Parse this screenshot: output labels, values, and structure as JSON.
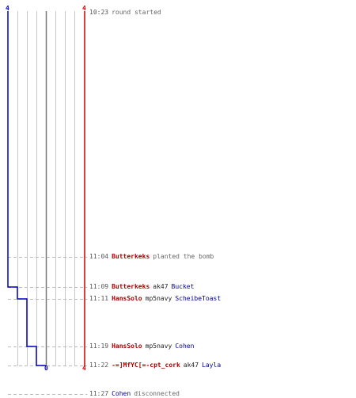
{
  "score": {
    "left_top": "4",
    "right_top": "4",
    "left_bottom": "0",
    "right_bottom": "4"
  },
  "colors": {
    "team_blue": "#0000cc",
    "team_red": "#cc0000",
    "grid": "#c8c8c8",
    "guide": "#bbbbbb"
  },
  "events": [
    {
      "time": "10:23",
      "text": "round started"
    },
    {
      "time": "11:04",
      "actor": "Butterkeks",
      "text": "planted the bomb"
    },
    {
      "time": "11:09",
      "actor": "Butterkeks",
      "weapon": "ak47",
      "victim": "Bucket"
    },
    {
      "time": "11:11",
      "actor": "HansSolo",
      "weapon": "mp5navy",
      "victim": "ScheibeToast"
    },
    {
      "time": "11:19",
      "actor": "HansSolo",
      "weapon": "mp5navy",
      "victim": "Cohen"
    },
    {
      "time": "11:22",
      "actor": "-=]MfYC[=-cpt_cork",
      "weapon": "ak47",
      "victim": "Layla"
    },
    {
      "time": "11:27",
      "actor_blue": "Cohen",
      "text": "disconnected"
    }
  ]
}
